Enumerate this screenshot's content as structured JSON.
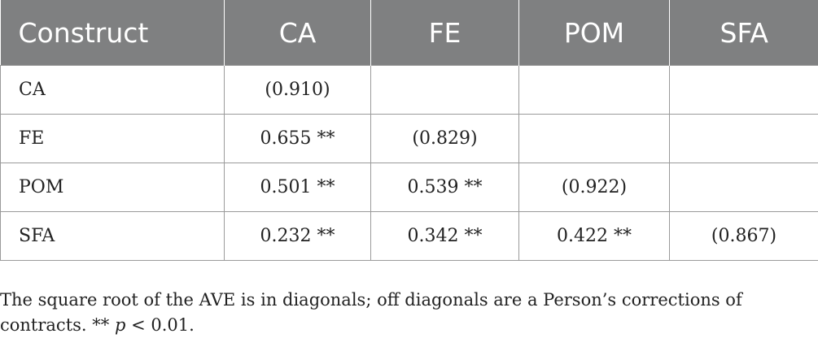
{
  "table": {
    "headers": [
      "Construct",
      "CA",
      "FE",
      "POM",
      "SFA"
    ],
    "rows": [
      [
        "CA",
        "(0.910)",
        "",
        "",
        ""
      ],
      [
        "FE",
        "0.655 **",
        "(0.829)",
        "",
        ""
      ],
      [
        "POM",
        "0.501 **",
        "0.539 **",
        "(0.922)",
        ""
      ],
      [
        "SFA",
        "0.232 **",
        "0.342 **",
        "0.422 **",
        "(0.867)"
      ]
    ]
  },
  "footnote": {
    "text_before": "The square root of the AVE is in diagonals; off diagonals are a Person’s corrections of contracts. ** ",
    "p_symbol": "p",
    "text_after": " < 0.01."
  }
}
